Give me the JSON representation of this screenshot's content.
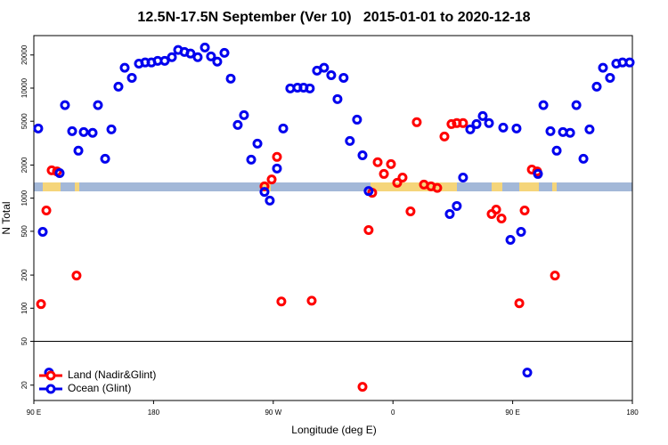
{
  "chart_data": {
    "type": "scatter",
    "title": "12.5N-17.5N September (Ver 10)   2015-01-01 to 2020-12-18",
    "x_label": "Longitude (deg E)",
    "y_label": "N Total",
    "xlim": [
      90,
      540
    ],
    "xticks": [
      {
        "value": 90,
        "label": "90 E"
      },
      180,
      {
        "value": 270,
        "label": "90 W"
      },
      {
        "value": 360,
        "label": "0"
      },
      {
        "value": 450,
        "label": "90 E"
      },
      {
        "value": 540,
        "label": "180"
      }
    ],
    "ylim": [
      14.5,
      30000
    ],
    "log_y": true,
    "yticks": [
      20,
      50,
      100,
      200,
      500,
      1000,
      2000,
      5000,
      10000,
      20000
    ],
    "reference_line": 50,
    "legend": "lower left",
    "series": [
      {
        "name": "Land (Nadir&Glint)",
        "color": "#ff0000",
        "x": [
          95.4,
          99.4,
          103.4,
          107.4,
          122.1,
          263.4,
          268.8,
          272.8,
          276.1,
          298.9,
          337.1,
          341.7,
          344.4,
          348.5,
          353.2,
          358.5,
          363.2,
          367.2,
          373.2,
          377.9,
          383.3,
          388.6,
          393.3,
          398.7,
          404.0,
          408.0,
          412.7,
          434.2,
          437.6,
          441.6,
          455.0,
          459.0,
          464.4,
          468.4,
          481.8
        ],
        "values": [
          109,
          773,
          1790,
          1750,
          198,
          1280,
          1480,
          2370,
          115,
          117,
          19.3,
          513,
          1120,
          2120,
          1660,
          2040,
          1380,
          1540,
          759,
          4900,
          1330,
          1280,
          1240,
          3630,
          4710,
          4810,
          4810,
          718,
          787,
          653,
          111,
          773,
          1820,
          1750,
          198
        ]
      },
      {
        "name": "Ocean (Glint)",
        "color": "#0000ee",
        "x": [
          93.3,
          96.7,
          101.4,
          109.4,
          113.4,
          118.8,
          123.5,
          127.5,
          134.2,
          138.2,
          143.6,
          148.3,
          153.6,
          158.3,
          163.7,
          169.0,
          173.7,
          178.4,
          183.1,
          188.4,
          193.8,
          198.5,
          203.2,
          207.8,
          213.2,
          218.6,
          223.2,
          227.9,
          233.3,
          238.0,
          243.3,
          248.0,
          253.4,
          258.1,
          263.4,
          267.4,
          272.8,
          277.5,
          282.8,
          288.2,
          292.8,
          297.5,
          302.9,
          308.2,
          313.6,
          318.3,
          322.9,
          327.6,
          333.0,
          337.1,
          341.7,
          402.7,
          408.0,
          412.7,
          418.1,
          422.8,
          427.5,
          432.2,
          442.9,
          448.3,
          452.9,
          456.3,
          461.0,
          469.0,
          473.1,
          478.4,
          483.1,
          487.8,
          493.2,
          497.9,
          503.2,
          507.8,
          513.2,
          517.9,
          523.2,
          527.9,
          532.6,
          538.0
        ],
        "values": [
          4300,
          494,
          26,
          1690,
          7000,
          4060,
          2700,
          3990,
          3920,
          7000,
          2280,
          4220,
          10300,
          15300,
          12400,
          16700,
          17100,
          17100,
          17700,
          17700,
          19100,
          22200,
          21300,
          20600,
          19100,
          23400,
          19400,
          17400,
          20900,
          12200,
          4630,
          5680,
          2240,
          3130,
          1140,
          950,
          1860,
          4300,
          9940,
          10100,
          10100,
          9940,
          14400,
          15300,
          13100,
          7950,
          12400,
          3310,
          5170,
          2450,
          1160,
          718,
          849,
          1540,
          4220,
          4710,
          5570,
          4810,
          4380,
          418,
          4300,
          494,
          26,
          1660,
          7000,
          4060,
          2700,
          3990,
          3920,
          7000,
          2280,
          4220,
          10300,
          15300,
          12400,
          16700,
          17100,
          17100
        ]
      }
    ]
  }
}
